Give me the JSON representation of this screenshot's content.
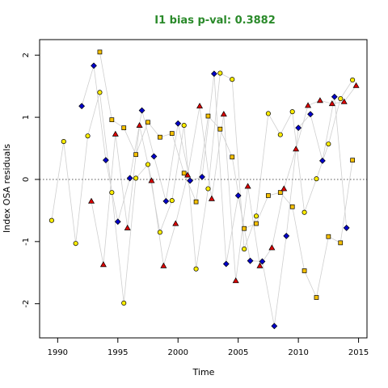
{
  "chart_data": {
    "type": "scatter",
    "title": "I1 bias p-val: 0.3882",
    "xlabel": "Time",
    "ylabel": "Index OSA residuals",
    "xlim": [
      1988.5,
      2015.7
    ],
    "ylim": [
      -2.55,
      2.25
    ],
    "x_ticks": [
      1990,
      1995,
      2000,
      2005,
      2010,
      2015
    ],
    "y_ticks": [
      -2,
      -1,
      0,
      1,
      2
    ],
    "reference_line": 0,
    "colors": {
      "title": "#2a8a2a",
      "line": "#cfcfcf",
      "circle": "#ffee00",
      "square": "#f5c000",
      "diamond": "#0000cc",
      "triangle": "#dd0000"
    },
    "series": [
      {
        "marker": "circle",
        "x": [
          1989.5,
          1990.5,
          1991.5,
          1992.5,
          1993.5,
          1994.5,
          1995.5,
          1996.5,
          1997.5,
          1998.5,
          1999.5,
          2000.5,
          2001.5,
          2002.5,
          2003.5,
          2004.5,
          2005.5,
          2006.5,
          2007.5,
          2008.5,
          2009.5,
          2010.5,
          2011.5,
          2012.5,
          2013.5,
          2014.5
        ],
        "y": [
          -0.66,
          0.61,
          -1.03,
          0.7,
          1.4,
          -0.21,
          -1.99,
          0.02,
          0.24,
          -0.85,
          -0.34,
          0.87,
          -1.44,
          -0.15,
          1.71,
          1.61,
          -1.12,
          -0.59,
          1.06,
          0.72,
          1.09,
          -0.53,
          0.01,
          0.57,
          1.3,
          1.6
        ]
      },
      {
        "marker": "square",
        "x": [
          1993.5,
          1994.5,
          1995.5,
          1996.5,
          1997.5,
          1998.5,
          1999.5,
          2000.5,
          2001.5,
          2002.5,
          2003.5,
          2004.5,
          2005.5,
          2006.5,
          2007.5,
          2008.5,
          2009.5,
          2010.5,
          2011.5,
          2012.5,
          2013.5,
          2014.5
        ],
        "y": [
          2.05,
          0.96,
          0.83,
          0.4,
          0.92,
          0.68,
          0.74,
          0.1,
          -0.36,
          1.02,
          0.81,
          0.36,
          -0.79,
          -0.71,
          -0.26,
          -0.21,
          -0.44,
          -1.47,
          -1.9,
          -0.92,
          -1.02,
          0.31
        ]
      },
      {
        "marker": "diamond",
        "x": [
          1992.0,
          1993.0,
          1994.0,
          1995.0,
          1996.0,
          1997.0,
          1998.0,
          1999.0,
          2000.0,
          2001.0,
          2002.0,
          2003.0,
          2004.0,
          2005.0,
          2006.0,
          2007.0,
          2008.0,
          2009.0,
          2010.0,
          2011.0,
          2012.0,
          2013.0,
          2014.0
        ],
        "y": [
          1.18,
          1.83,
          0.31,
          -0.68,
          0.02,
          1.11,
          0.37,
          -0.35,
          0.9,
          -0.02,
          0.04,
          1.7,
          -1.36,
          -0.26,
          -1.31,
          -1.32,
          -2.36,
          -0.91,
          0.83,
          1.05,
          0.3,
          1.33,
          -0.78
        ]
      },
      {
        "marker": "triangle",
        "x": [
          1992.8,
          1993.8,
          1994.8,
          1995.8,
          1996.8,
          1997.8,
          1998.8,
          1999.8,
          2000.8,
          2001.8,
          2002.8,
          2003.8,
          2004.8,
          2005.8,
          2006.8,
          2007.8,
          2008.8,
          2009.8,
          2010.8,
          2011.8,
          2012.8,
          2013.8,
          2014.8
        ],
        "y": [
          -0.35,
          -1.37,
          0.73,
          -0.78,
          0.87,
          -0.02,
          -1.39,
          -0.71,
          0.07,
          1.18,
          -0.31,
          1.05,
          -1.63,
          -0.11,
          -1.39,
          -1.1,
          -0.15,
          0.49,
          1.19,
          1.27,
          1.22,
          1.25,
          1.51
        ]
      }
    ]
  }
}
